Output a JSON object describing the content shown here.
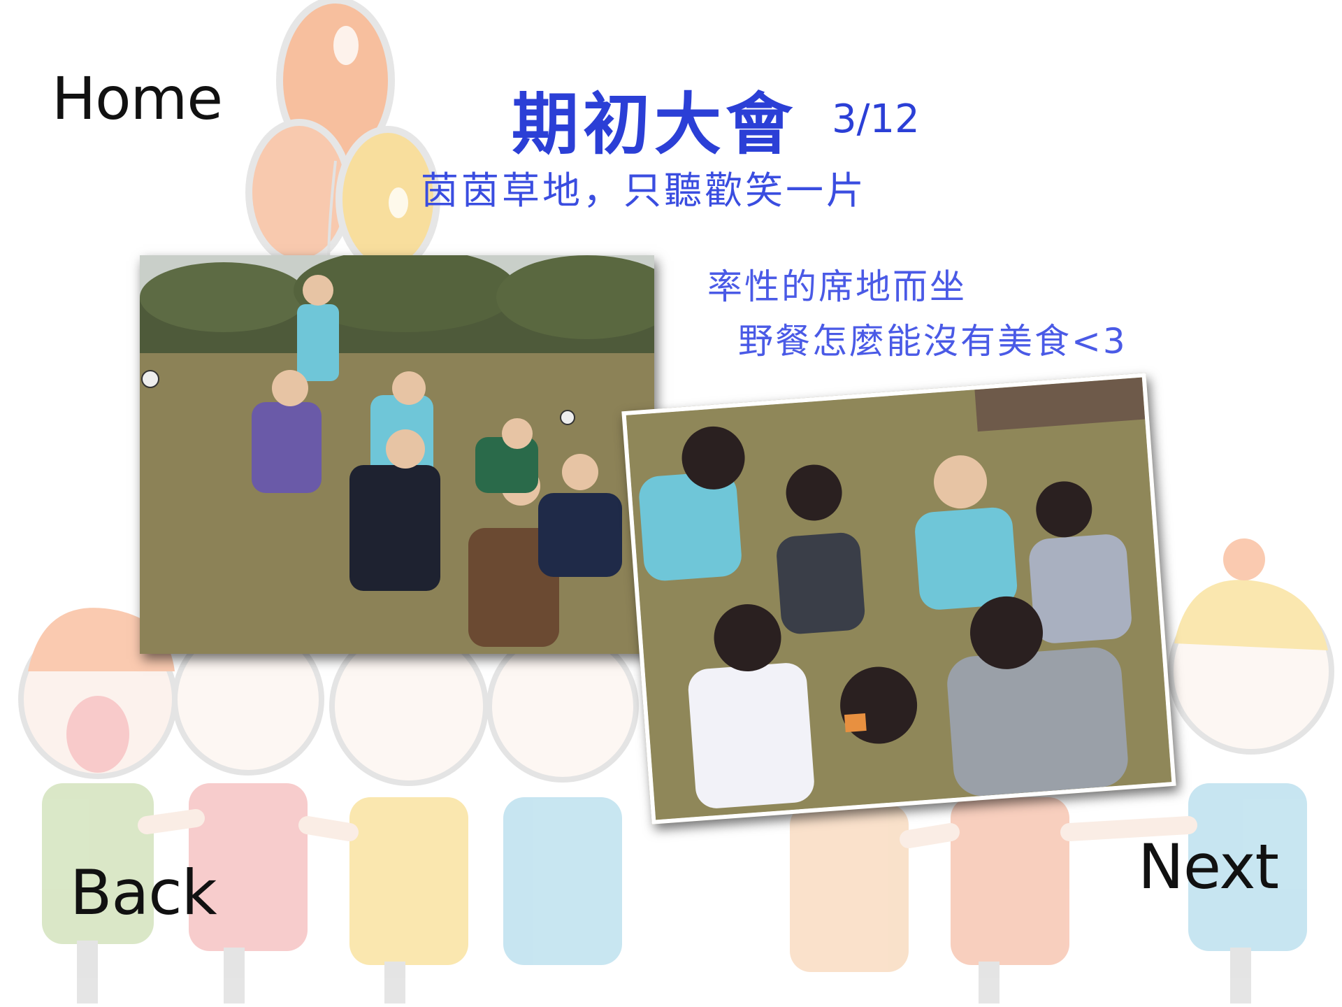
{
  "nav": {
    "home_label": "Home",
    "back_label": "Back",
    "next_label": "Next"
  },
  "header": {
    "title": "期初大會",
    "date": "3/12",
    "subtitle": "茵茵草地，只聽歡笑一片"
  },
  "captions": {
    "line1": "率性的席地而坐",
    "line2": "野餐怎麼能沒有美食<3"
  },
  "colors": {
    "title_blue": "#2b3fd6",
    "caption_blue": "#4a5ae6",
    "balloon_orange": "#f5b08a",
    "balloon_yellow": "#f7d98a",
    "grass": "#8a8055"
  }
}
